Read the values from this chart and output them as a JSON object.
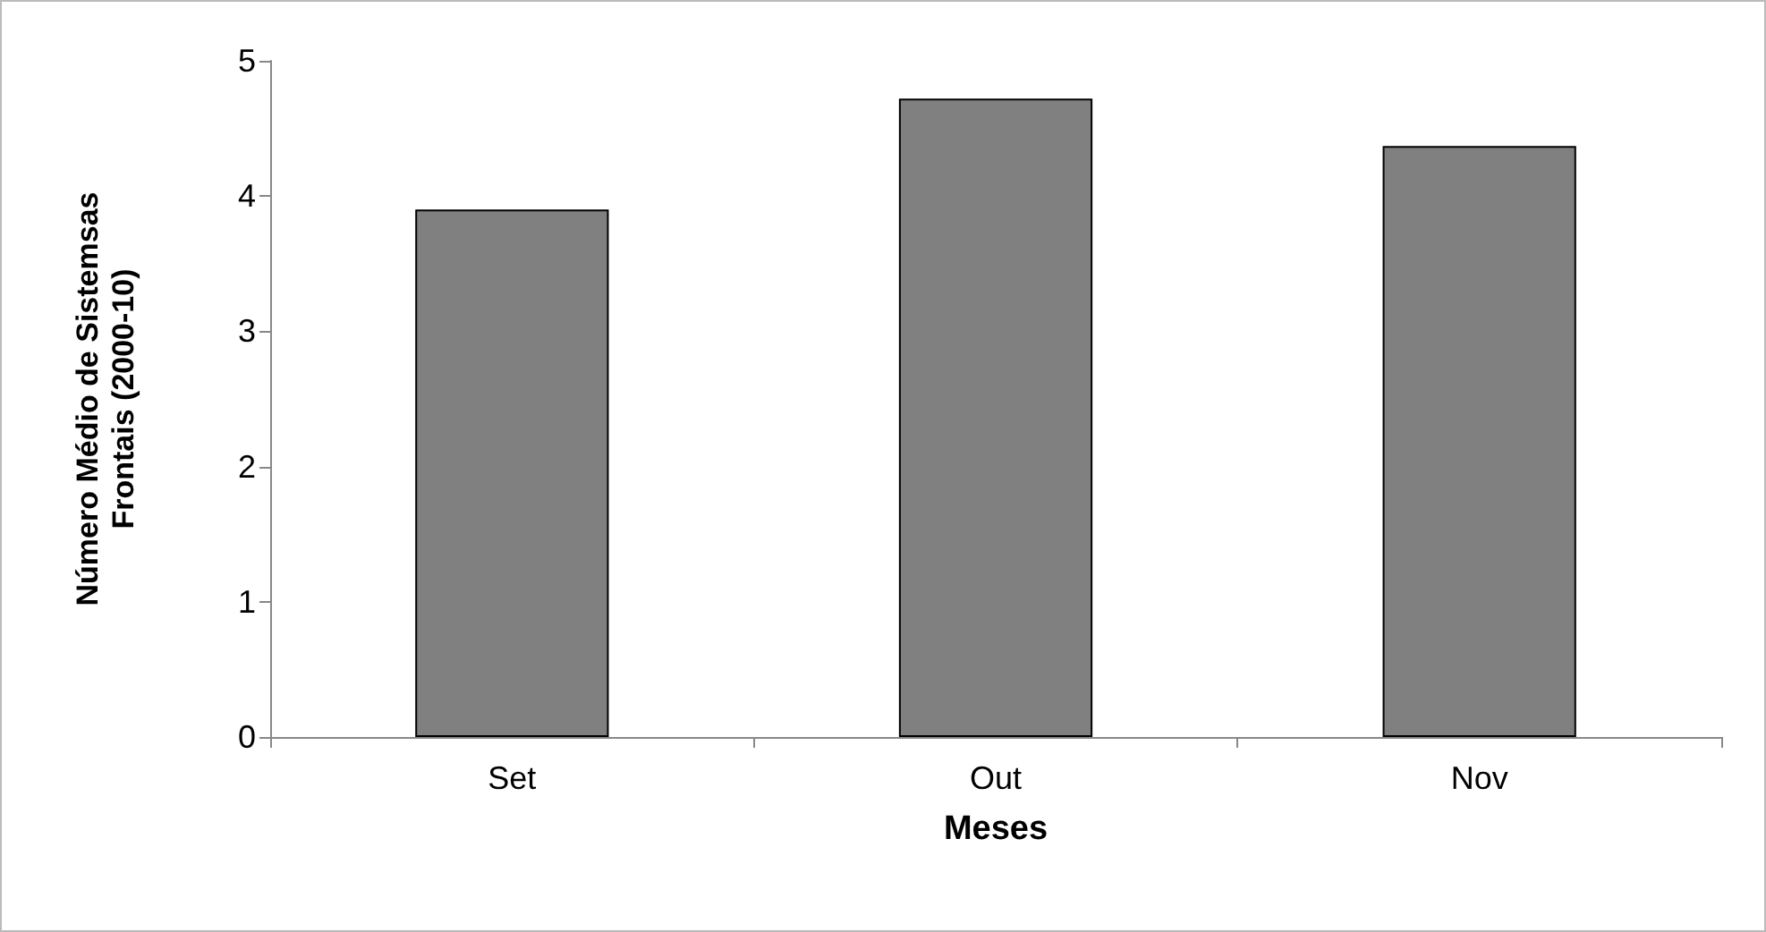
{
  "chart_data": {
    "type": "bar",
    "xlabel": "Meses",
    "ylabel": "Número Médio de Sistemsas Frontais (2000-10)",
    "categories": [
      "Set",
      "Out",
      "Nov"
    ],
    "values": [
      3.9,
      4.72,
      4.37
    ],
    "color": "#808080",
    "ylim": [
      0,
      5
    ],
    "yticks": [
      0,
      1,
      2,
      3,
      4,
      5
    ],
    "grid": false
  }
}
